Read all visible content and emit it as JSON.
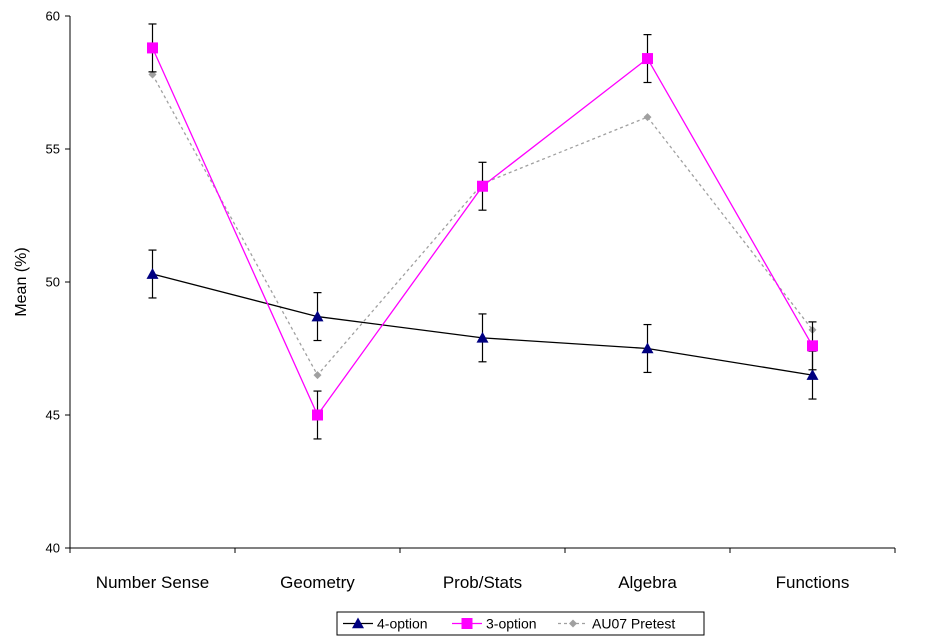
{
  "chart_data": {
    "type": "line",
    "title": "",
    "xlabel": "",
    "ylabel": "Mean (%)",
    "ylim": [
      40,
      60
    ],
    "yticks": [
      "40",
      "45",
      "50",
      "55",
      "60"
    ],
    "categories": [
      "Number Sense",
      "Geometry",
      "Prob/Stats",
      "Algebra",
      "Functions"
    ],
    "grid": false,
    "legend_position": "bottom",
    "series": [
      {
        "name": "4-option",
        "values": [
          50.3,
          48.7,
          47.9,
          47.5,
          46.5
        ],
        "error": [
          0.9,
          0.9,
          0.9,
          0.9,
          0.9
        ],
        "color": "#000000",
        "marker_color": "#000080",
        "marker": "triangle",
        "line_style": "solid"
      },
      {
        "name": "3-option",
        "values": [
          58.8,
          45.0,
          53.6,
          58.4,
          47.6
        ],
        "error": [
          0.9,
          0.9,
          0.9,
          0.9,
          0.9
        ],
        "color": "#ff00ff",
        "marker_color": "#ff00ff",
        "marker": "square",
        "line_style": "solid"
      },
      {
        "name": "AU07 Pretest",
        "values": [
          57.8,
          46.5,
          53.7,
          56.2,
          48.2
        ],
        "color": "#a0a0a0",
        "marker_color": "#a0a0a0",
        "marker": "diamond",
        "line_style": "dotted"
      }
    ]
  }
}
